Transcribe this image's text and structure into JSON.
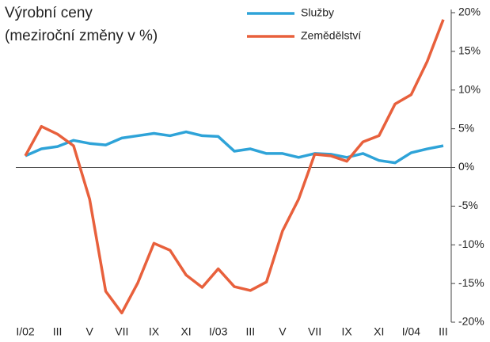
{
  "chart_data": {
    "type": "line",
    "title_lines": [
      "Výrobní ceny",
      "(meziroční změny v %)"
    ],
    "categories": [
      "I/02",
      null,
      "III",
      null,
      "V",
      null,
      "VII",
      null,
      "IX",
      null,
      "XI",
      null,
      "I/03",
      null,
      "III",
      null,
      "V",
      null,
      "VII",
      null,
      "IX",
      null,
      "XI",
      null,
      "I/04",
      null,
      "III"
    ],
    "series": [
      {
        "name": "Služby",
        "color": "#2ea3d8",
        "values": [
          1.5,
          2.4,
          2.7,
          3.5,
          3.1,
          2.9,
          3.8,
          4.1,
          4.4,
          4.1,
          4.6,
          4.1,
          4.0,
          2.1,
          2.4,
          1.8,
          1.8,
          1.3,
          1.8,
          1.7,
          1.3,
          1.8,
          0.9,
          0.6,
          1.9,
          2.4,
          2.8
        ]
      },
      {
        "name": "Zemědělství",
        "color": "#e8603c",
        "values": [
          1.5,
          5.3,
          4.3,
          2.8,
          -4.1,
          -16,
          -18.8,
          -14.9,
          -9.8,
          -10.7,
          -13.9,
          -15.5,
          -13.1,
          -15.4,
          -15.9,
          -14.8,
          -8.2,
          -4.1,
          1.7,
          1.5,
          0.8,
          3.3,
          4.1,
          8.2,
          9.4,
          13.7,
          19.1
        ]
      }
    ],
    "ylim": [
      -20,
      20
    ],
    "yticks": [
      {
        "value": -20,
        "label": "-20%"
      },
      {
        "value": -15,
        "label": "-15%"
      },
      {
        "value": -10,
        "label": "-10%"
      },
      {
        "value": -5,
        "label": "-5%"
      },
      {
        "value": 0,
        "label": "0%"
      },
      {
        "value": 5,
        "label": "5%"
      },
      {
        "value": 10,
        "label": "10%"
      },
      {
        "value": 15,
        "label": "15%"
      },
      {
        "value": 20,
        "label": "20%"
      }
    ],
    "legend": "top"
  }
}
